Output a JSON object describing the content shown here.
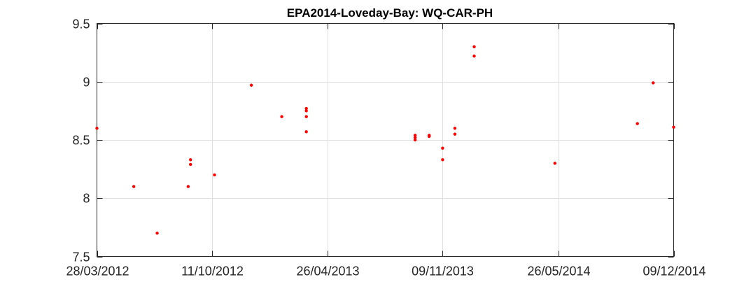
{
  "chart_data": {
    "type": "scatter",
    "title": "EPA2014-Loveday-Bay: WQ-CAR-PH",
    "xlabel": "",
    "ylabel": "",
    "x_axis_type": "date",
    "xlim": [
      "2012-03-28",
      "2014-12-09"
    ],
    "ylim": [
      7.5,
      9.5
    ],
    "x_ticks": [
      "2012-03-28",
      "2012-10-11",
      "2013-04-26",
      "2013-11-09",
      "2014-05-26",
      "2014-12-09"
    ],
    "x_tick_labels": [
      "28/03/2012",
      "11/10/2012",
      "26/04/2013",
      "09/11/2013",
      "26/05/2014",
      "09/12/2014"
    ],
    "y_ticks": [
      7.5,
      8,
      8.5,
      9,
      9.5
    ],
    "y_tick_labels": [
      "7.5",
      "8",
      "8.5",
      "9",
      "9.5"
    ],
    "grid": true,
    "marker_color": "#ff0000",
    "series": [
      {
        "points": [
          {
            "x": "2012-03-28",
            "y": 8.6
          },
          {
            "x": "2012-05-30",
            "y": 8.1
          },
          {
            "x": "2012-07-09",
            "y": 7.7
          },
          {
            "x": "2012-08-31",
            "y": 8.1
          },
          {
            "x": "2012-09-04",
            "y": 8.33
          },
          {
            "x": "2012-09-04",
            "y": 8.29
          },
          {
            "x": "2012-10-15",
            "y": 8.2
          },
          {
            "x": "2012-12-17",
            "y": 8.97
          },
          {
            "x": "2013-02-07",
            "y": 8.7
          },
          {
            "x": "2013-03-21",
            "y": 8.77
          },
          {
            "x": "2013-03-21",
            "y": 8.75
          },
          {
            "x": "2013-03-21",
            "y": 8.7
          },
          {
            "x": "2013-03-21",
            "y": 8.57
          },
          {
            "x": "2013-09-23",
            "y": 8.54
          },
          {
            "x": "2013-09-23",
            "y": 8.52
          },
          {
            "x": "2013-09-23",
            "y": 8.5
          },
          {
            "x": "2013-10-17",
            "y": 8.54
          },
          {
            "x": "2013-10-17",
            "y": 8.53
          },
          {
            "x": "2013-11-09",
            "y": 8.43
          },
          {
            "x": "2013-11-09",
            "y": 8.33
          },
          {
            "x": "2013-11-30",
            "y": 8.6
          },
          {
            "x": "2013-11-30",
            "y": 8.55
          },
          {
            "x": "2014-01-02",
            "y": 9.3
          },
          {
            "x": "2014-01-02",
            "y": 9.22
          },
          {
            "x": "2014-05-20",
            "y": 8.3
          },
          {
            "x": "2014-10-08",
            "y": 8.64
          },
          {
            "x": "2014-11-04",
            "y": 8.99
          },
          {
            "x": "2014-12-09",
            "y": 8.61
          }
        ]
      }
    ]
  }
}
